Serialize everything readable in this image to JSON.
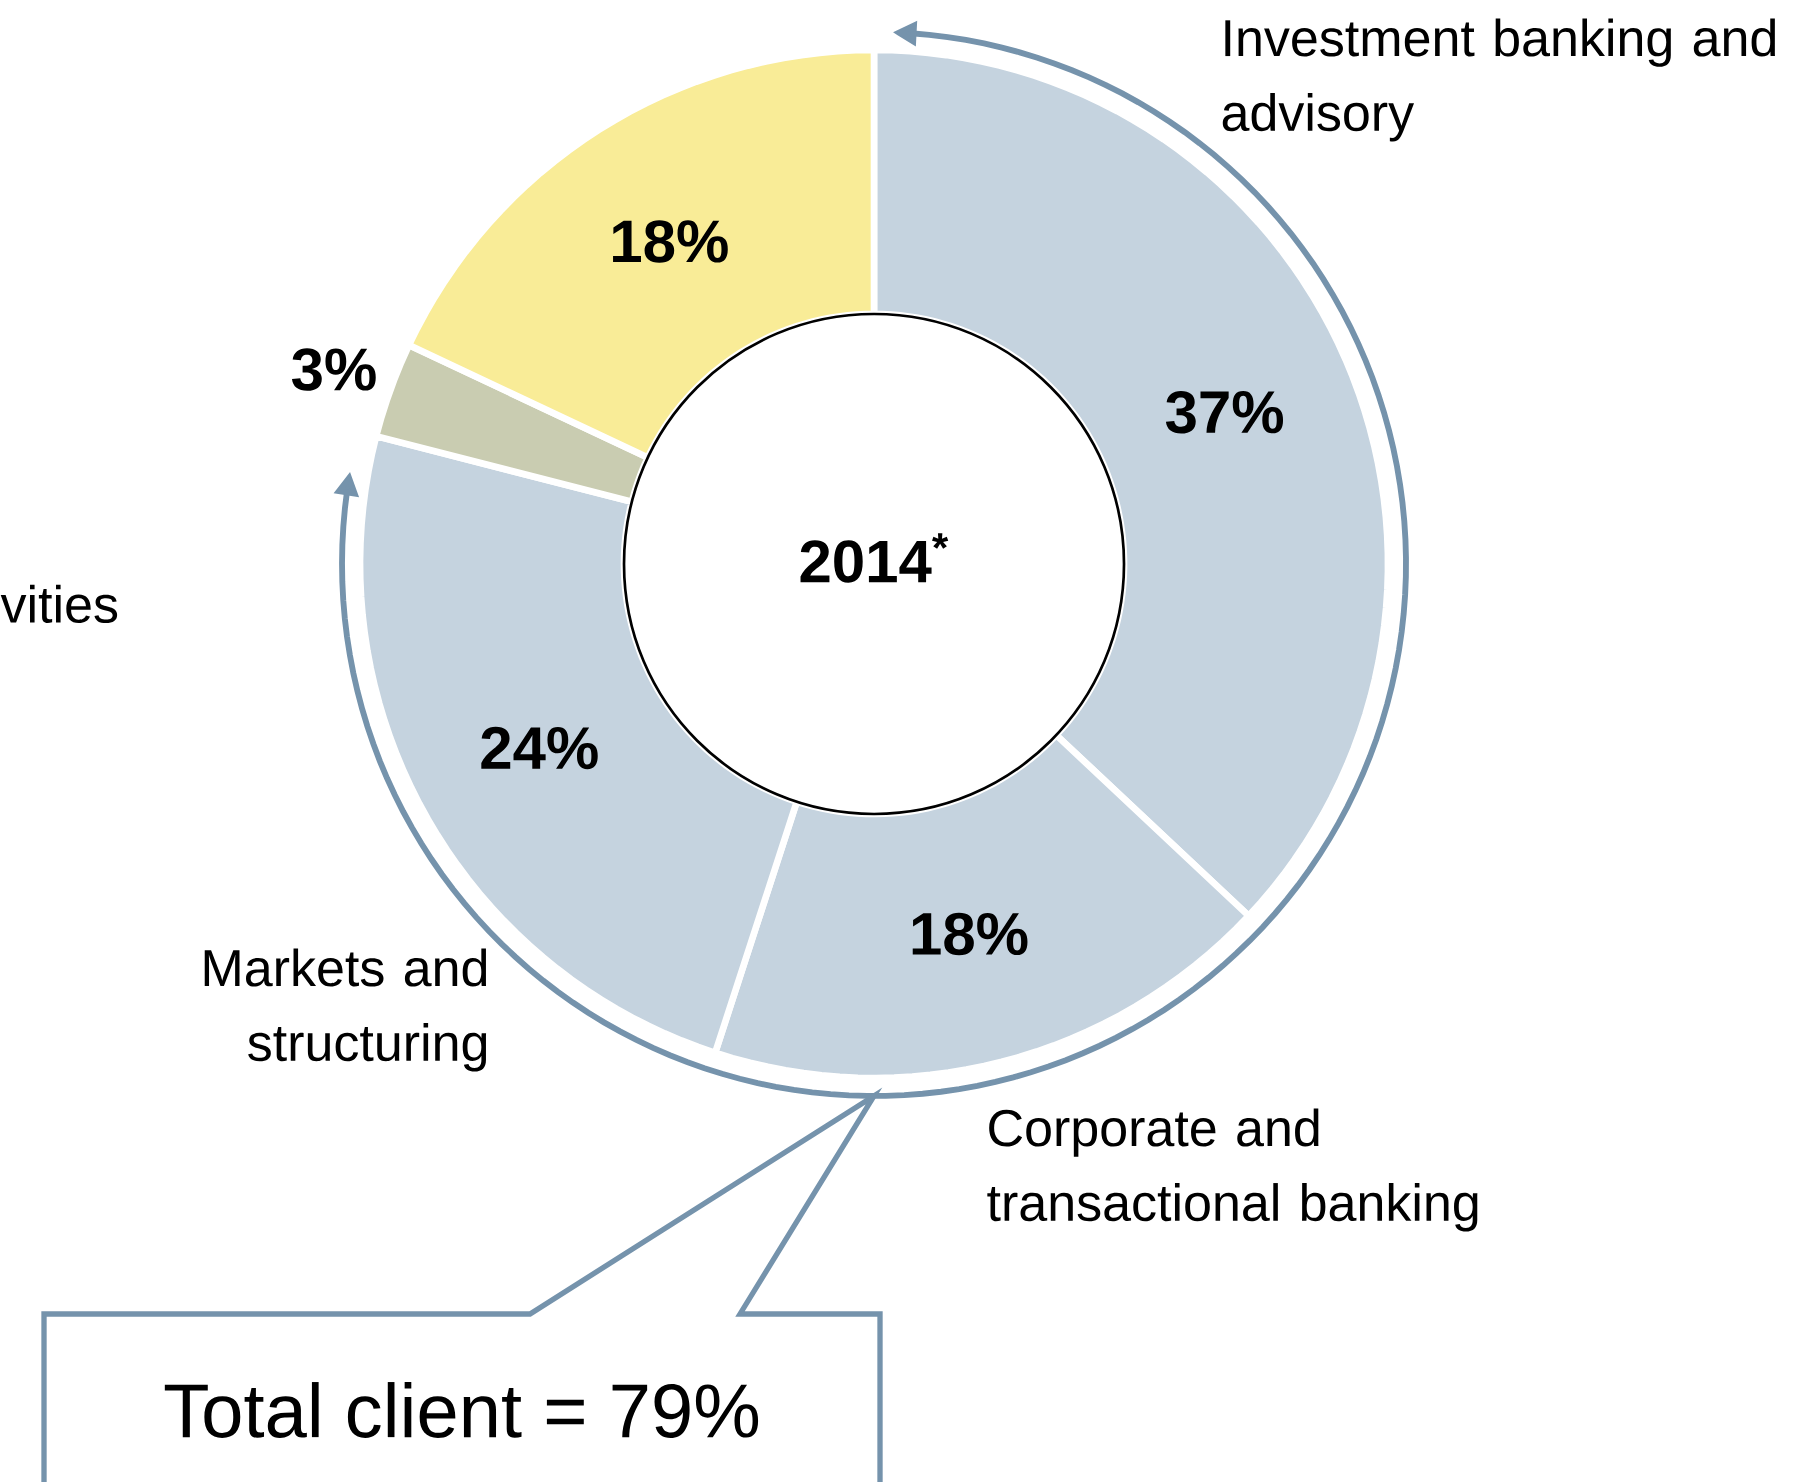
{
  "chart_data": {
    "type": "donut",
    "title": "2014$^{*}$",
    "categories": [
      "Investment banking and advisory",
      "Corporate and transactional banking",
      "Markets and structuring",
      null,
      null
    ],
    "values": [
      37,
      18,
      24,
      3,
      18
    ],
    "value_labels": [
      "37%",
      "18%",
      "24%",
      "3%",
      "18%"
    ],
    "colors": [
      "#c5d3df",
      "#c5d3df",
      "#c5d3df",
      "#c9ccb1",
      "#f9ec97"
    ],
    "annotations": [
      "Total client = 79%",
      "vities"
    ]
  }
}
